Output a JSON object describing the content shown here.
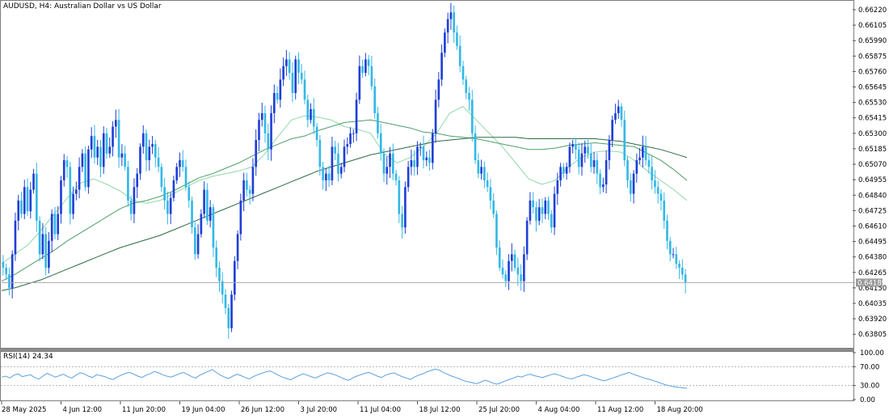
{
  "chart_data": {
    "type": "candlestick",
    "title": "AUDUSD, H4:  Australian Dollar vs US Dollar",
    "symbol": "AUDUSD",
    "timeframe": "H4",
    "price_axis": {
      "ylim": [
        0.6371,
        0.6628
      ],
      "ticks": [
        "0.66220",
        "0.66105",
        "0.65990",
        "0.65875",
        "0.65760",
        "0.65645",
        "0.65530",
        "0.65415",
        "0.65300",
        "0.65185",
        "0.65070",
        "0.64955",
        "0.64840",
        "0.64725",
        "0.64610",
        "0.64495",
        "0.64380",
        "0.64265",
        "0.64150",
        "0.64035",
        "0.63920",
        "0.63805"
      ]
    },
    "current_price": {
      "label": "0.64189",
      "value": 0.64189
    },
    "time_axis": [
      "28 May 2025",
      "4 Jun 12:00",
      "11 Jun 20:00",
      "19 Jun 04:00",
      "26 Jun 12:00",
      "3 Jul 20:00",
      "11 Jul 04:00",
      "18 Jul 12:00",
      "25 Jul 20:00",
      "4 Aug 04:00",
      "11 Aug 12:00",
      "18 Aug 20:00"
    ],
    "close_path": [
      0.643,
      0.6425,
      0.6415,
      0.644,
      0.6465,
      0.648,
      0.647,
      0.649,
      0.6472,
      0.6488,
      0.65,
      0.6465,
      0.644,
      0.6455,
      0.643,
      0.645,
      0.647,
      0.6455,
      0.647,
      0.6495,
      0.651,
      0.6505,
      0.647,
      0.6485,
      0.6488,
      0.6505,
      0.6515,
      0.649,
      0.6518,
      0.6528,
      0.6512,
      0.652,
      0.6505,
      0.653,
      0.6515,
      0.652,
      0.6535,
      0.654,
      0.6512,
      0.6515,
      0.6505,
      0.648,
      0.647,
      0.649,
      0.65,
      0.652,
      0.653,
      0.651,
      0.652,
      0.6522,
      0.6512,
      0.6505,
      0.649,
      0.648,
      0.647,
      0.6482,
      0.6495,
      0.6505,
      0.651,
      0.6505,
      0.649,
      0.648,
      0.646,
      0.644,
      0.6455,
      0.647,
      0.6488,
      0.6465,
      0.6475,
      0.6445,
      0.643,
      0.642,
      0.641,
      0.64,
      0.6385,
      0.641,
      0.6435,
      0.6455,
      0.648,
      0.6495,
      0.6488,
      0.6485,
      0.6505,
      0.6525,
      0.654,
      0.6545,
      0.653,
      0.6518,
      0.6545,
      0.656,
      0.6555,
      0.657,
      0.658,
      0.6585,
      0.6575,
      0.656,
      0.6585,
      0.6575,
      0.657,
      0.6555,
      0.654,
      0.6548,
      0.6535,
      0.6525,
      0.6505,
      0.6495,
      0.65,
      0.6495,
      0.652,
      0.6515,
      0.65,
      0.6505,
      0.652,
      0.6522,
      0.653,
      0.653,
      0.6555,
      0.658,
      0.6575,
      0.6585,
      0.658,
      0.6565,
      0.6545,
      0.653,
      0.6515,
      0.65,
      0.6505,
      0.6515,
      0.65,
      0.6495,
      0.647,
      0.646,
      0.649,
      0.6505,
      0.651,
      0.6505,
      0.652,
      0.652,
      0.651,
      0.6512,
      0.6508,
      0.653,
      0.6555,
      0.657,
      0.659,
      0.6605,
      0.6615,
      0.662,
      0.6605,
      0.6595,
      0.658,
      0.657,
      0.656,
      0.6555,
      0.653,
      0.651,
      0.65,
      0.6505,
      0.6495,
      0.649,
      0.648,
      0.647,
      0.6445,
      0.643,
      0.6425,
      0.642,
      0.6435,
      0.644,
      0.643,
      0.6425,
      0.642,
      0.644,
      0.6465,
      0.648,
      0.6475,
      0.6465,
      0.6475,
      0.647,
      0.648,
      0.647,
      0.646,
      0.6485,
      0.6495,
      0.6505,
      0.65,
      0.6505,
      0.652,
      0.6522,
      0.6518,
      0.6505,
      0.6515,
      0.652,
      0.6515,
      0.6505,
      0.651,
      0.65,
      0.649,
      0.6492,
      0.651,
      0.6525,
      0.654,
      0.6545,
      0.655,
      0.654,
      0.651,
      0.6495,
      0.6485,
      0.65,
      0.651,
      0.6512,
      0.652,
      0.651,
      0.6505,
      0.6495,
      0.649,
      0.6485,
      0.648,
      0.6465,
      0.645,
      0.644,
      0.644,
      0.6433,
      0.643,
      0.6425,
      0.6419
    ],
    "moving_averages": [
      {
        "color": "#8fd9a8",
        "values": [
          0.6433,
          0.644,
          0.6447,
          0.6458,
          0.647,
          0.6482,
          0.6493,
          0.6496,
          0.6492,
          0.6487,
          0.648,
          0.6478,
          0.648,
          0.6485,
          0.649,
          0.6495,
          0.6498,
          0.65,
          0.6502,
          0.6505,
          0.6515,
          0.6528,
          0.654,
          0.6543,
          0.6542,
          0.654,
          0.6535,
          0.6533,
          0.653,
          0.6515,
          0.6508,
          0.6512,
          0.652,
          0.653,
          0.6545,
          0.655,
          0.654,
          0.653,
          0.652,
          0.6508,
          0.6496,
          0.6492,
          0.6495,
          0.6505,
          0.6512,
          0.6516,
          0.6517,
          0.6516,
          0.651,
          0.6502,
          0.6495,
          0.6488,
          0.648
        ]
      },
      {
        "color": "#4e9e6a",
        "values": [
          0.642,
          0.6425,
          0.6431,
          0.6437,
          0.6443,
          0.645,
          0.6456,
          0.6462,
          0.6468,
          0.6474,
          0.6478,
          0.648,
          0.6483,
          0.6487,
          0.6492,
          0.6497,
          0.65,
          0.6504,
          0.6508,
          0.6513,
          0.6518,
          0.6522,
          0.6526,
          0.6528,
          0.6532,
          0.6535,
          0.6538,
          0.6539,
          0.654,
          0.6538,
          0.6536,
          0.6534,
          0.6531,
          0.653,
          0.6528,
          0.6527,
          0.6526,
          0.6524,
          0.6522,
          0.652,
          0.6518,
          0.6518,
          0.6519,
          0.6521,
          0.6522,
          0.6523,
          0.6522,
          0.6521,
          0.652,
          0.6515,
          0.651,
          0.6503,
          0.6495
        ]
      },
      {
        "color": "#2a6b40",
        "values": [
          0.6413,
          0.6415,
          0.6418,
          0.6421,
          0.6425,
          0.6429,
          0.6433,
          0.6437,
          0.6441,
          0.6445,
          0.6448,
          0.6451,
          0.6454,
          0.6458,
          0.6462,
          0.6466,
          0.647,
          0.6474,
          0.6478,
          0.6482,
          0.6486,
          0.649,
          0.6494,
          0.6498,
          0.6502,
          0.6505,
          0.6508,
          0.6511,
          0.6514,
          0.6516,
          0.6518,
          0.652,
          0.6522,
          0.6524,
          0.6525,
          0.6526,
          0.6527,
          0.6527,
          0.6527,
          0.6527,
          0.6526,
          0.6526,
          0.6526,
          0.6526,
          0.6526,
          0.6526,
          0.6525,
          0.6524,
          0.6522,
          0.652,
          0.6518,
          0.6515,
          0.6512
        ]
      }
    ],
    "rsi": {
      "label": "RSI(14) 24.34",
      "ylim": [
        0,
        100
      ],
      "ticks": [
        "100.00",
        "70.00",
        "30.00",
        "0.00"
      ],
      "levels": [
        70,
        30
      ],
      "values": [
        48,
        50,
        46,
        52,
        55,
        49,
        51,
        53,
        47,
        44,
        50,
        56,
        52,
        48,
        51,
        54,
        49,
        46,
        52,
        57,
        55,
        50,
        47,
        53,
        51,
        49,
        45,
        43,
        48,
        52,
        56,
        58,
        54,
        50,
        47,
        52,
        55,
        60,
        57,
        53,
        50,
        48,
        51,
        55,
        58,
        54,
        49,
        46,
        52,
        56,
        60,
        64,
        58,
        52,
        48,
        45,
        50,
        54,
        51,
        47,
        44,
        49,
        53,
        56,
        59,
        61,
        57,
        52,
        48,
        45,
        42,
        47,
        51,
        55,
        52,
        49,
        46,
        50,
        54,
        57,
        55,
        52,
        48,
        44,
        41,
        46,
        50,
        53,
        56,
        58,
        54,
        50,
        47,
        52,
        55,
        57,
        53,
        49,
        46,
        43,
        48,
        52,
        55,
        59,
        62,
        65,
        63,
        58,
        54,
        50,
        47,
        44,
        40,
        38,
        36,
        34,
        37,
        41,
        39,
        35,
        33,
        36,
        40,
        43,
        46,
        50,
        48,
        52,
        54,
        51,
        49,
        47,
        50,
        53,
        55,
        52,
        49,
        46,
        44,
        47,
        50,
        53,
        51,
        48,
        45,
        42,
        40,
        43,
        46,
        49,
        52,
        55,
        58,
        54,
        51,
        48,
        45,
        43,
        40,
        37,
        34,
        31,
        29,
        27,
        26,
        25,
        24.34
      ]
    }
  }
}
